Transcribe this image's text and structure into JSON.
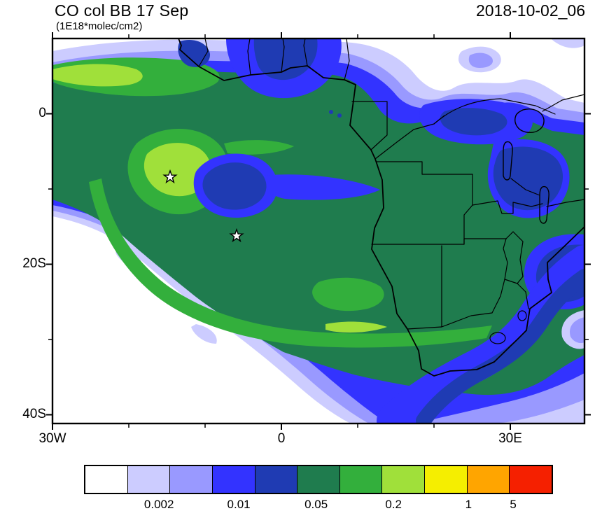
{
  "header": {
    "title": "CO col BB 17 Sep",
    "units": "(1E18*molec/cm2)",
    "date_label": "2018-10-02_06"
  },
  "axes": {
    "y_ticks": [
      "0",
      "20S",
      "40S"
    ],
    "x_ticks": [
      "30W",
      "0",
      "30E"
    ]
  },
  "colorbar": {
    "cell_colors": [
      "#ffffff",
      "#ccccff",
      "#9999ff",
      "#3333ff",
      "#1f3bb3",
      "#1f7c4e",
      "#33af3c",
      "#a0e03a",
      "#f5ee00",
      "#ffa500",
      "#f52000"
    ],
    "tick_labels": [
      "0.002",
      "0.01",
      "0.05",
      "0.2",
      "1",
      "5"
    ],
    "label_positions_pct": [
      16,
      33,
      49.5,
      66,
      82,
      91.5
    ]
  },
  "markers": {
    "stars": [
      {
        "x": 168,
        "y": 198
      },
      {
        "x": 263,
        "y": 282
      }
    ]
  }
}
